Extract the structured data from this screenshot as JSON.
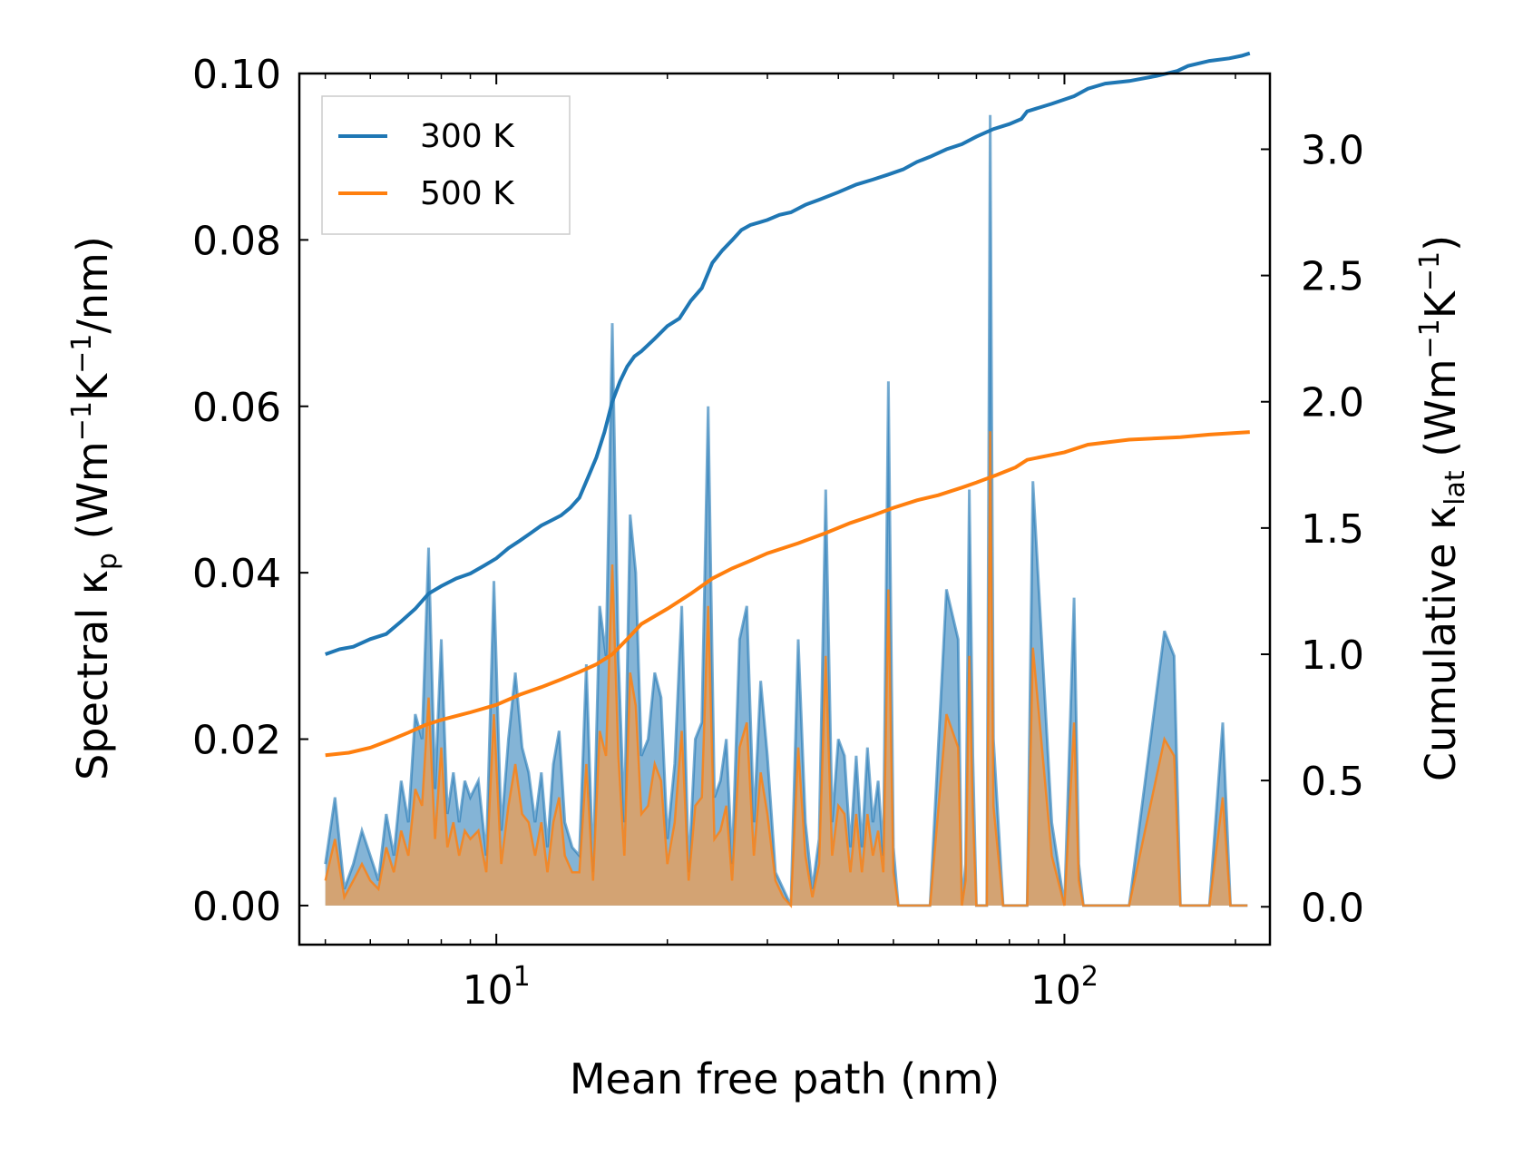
{
  "chart_data": {
    "type": "line",
    "title": "",
    "xlabel": "Mean free path (nm)",
    "ylabel_left": {
      "main": "Spectral κ",
      "sub": "p",
      "unit_pre": " (Wm",
      "sup1": "−1",
      "unit_mid": "K",
      "sup2": "−1",
      "unit_post": "/nm)"
    },
    "ylabel_right": {
      "main": "Cumulative κ",
      "sub": "lat",
      "unit_pre": " (Wm",
      "sup1": "−1",
      "unit_mid": "K",
      "sup2": "−1",
      "unit_post": ")"
    },
    "xscale": "log",
    "xlim": [
      4.5,
      230
    ],
    "ylim_left": [
      -0.0047,
      0.1
    ],
    "ylim_right": [
      -0.15,
      3.3
    ],
    "x_ticks": [
      {
        "value": 10,
        "base": "10",
        "exp": "1"
      },
      {
        "value": 100,
        "base": "10",
        "exp": "2"
      }
    ],
    "y_left_ticks": [
      "0.00",
      "0.02",
      "0.04",
      "0.06",
      "0.08",
      "0.10"
    ],
    "y_right_ticks": [
      "0.0",
      "0.5",
      "1.0",
      "1.5",
      "2.0",
      "2.5",
      "3.0"
    ],
    "legend": {
      "position": "top-left",
      "entries": [
        "300 K",
        "500 K"
      ]
    },
    "colors": {
      "s300": "#1f77b4",
      "s500": "#ff7f0e",
      "fill300": "#1f77b4",
      "fill500": "#d7a26e"
    },
    "spectral": {
      "x": [
        5.0,
        5.2,
        5.4,
        5.6,
        5.8,
        6.0,
        6.2,
        6.4,
        6.6,
        6.8,
        7.0,
        7.2,
        7.4,
        7.6,
        7.8,
        8.0,
        8.2,
        8.4,
        8.6,
        8.8,
        9.0,
        9.3,
        9.6,
        9.9,
        10.2,
        10.5,
        10.8,
        11.1,
        11.4,
        11.7,
        12.0,
        12.3,
        12.6,
        12.9,
        13.2,
        13.6,
        14.0,
        14.4,
        14.8,
        15.2,
        15.6,
        16.0,
        16.4,
        16.8,
        17.2,
        17.6,
        18.0,
        18.5,
        19.0,
        19.5,
        20.0,
        20.6,
        21.2,
        21.8,
        22.4,
        23.0,
        23.6,
        24.2,
        24.8,
        25.4,
        26.0,
        26.8,
        27.6,
        28.4,
        29.2,
        30.0,
        31.0,
        32.0,
        33.0,
        34.0,
        35.0,
        36.0,
        37.0,
        38.0,
        39.0,
        40.0,
        41.0,
        42.0,
        43.0,
        44.0,
        45.0,
        46.0,
        47.0,
        48.0,
        49.0,
        50.0,
        51.0,
        52.0,
        53.0,
        54.0,
        55.0,
        56.0,
        57.0,
        58.0,
        62.0,
        65.0,
        66.0,
        67.0,
        68.0,
        69.0,
        70.0,
        71.0,
        72.0,
        73.0,
        74.0,
        75.0,
        78.0,
        82.0,
        84.0,
        86.0,
        88.0,
        95.0,
        100.0,
        104.0,
        106.0,
        108.0,
        110.0,
        112.0,
        114.0,
        116.0,
        130.0,
        150.0,
        156.0,
        160.0,
        164.0,
        168.0,
        180.0,
        190.0,
        196.0,
        200.0,
        206.0,
        210.0
      ],
      "v300": [
        0.005,
        0.013,
        0.002,
        0.005,
        0.009,
        0.006,
        0.003,
        0.011,
        0.006,
        0.015,
        0.01,
        0.023,
        0.02,
        0.043,
        0.014,
        0.032,
        0.011,
        0.016,
        0.01,
        0.015,
        0.013,
        0.015,
        0.006,
        0.039,
        0.009,
        0.02,
        0.028,
        0.019,
        0.016,
        0.01,
        0.016,
        0.007,
        0.017,
        0.021,
        0.01,
        0.007,
        0.006,
        0.029,
        0.004,
        0.036,
        0.03,
        0.07,
        0.03,
        0.01,
        0.047,
        0.04,
        0.018,
        0.02,
        0.028,
        0.025,
        0.008,
        0.017,
        0.036,
        0.004,
        0.02,
        0.022,
        0.06,
        0.013,
        0.015,
        0.02,
        0.005,
        0.032,
        0.036,
        0.01,
        0.027,
        0.018,
        0.004,
        0.002,
        0.0,
        0.032,
        0.01,
        0.002,
        0.008,
        0.05,
        0.01,
        0.02,
        0.018,
        0.007,
        0.018,
        0.007,
        0.019,
        0.01,
        0.015,
        0.006,
        0.063,
        0.007,
        0.0,
        0.0,
        0.0,
        0.0,
        0.0,
        0.0,
        0.0,
        0.0,
        0.038,
        0.032,
        0.0,
        0.005,
        0.05,
        0.018,
        0.0,
        0.0,
        0.0,
        0.0,
        0.095,
        0.02,
        0.0,
        0.0,
        0.0,
        0.0,
        0.051,
        0.01,
        0.0,
        0.037,
        0.005,
        0.0,
        0.0,
        0.0,
        0.0,
        0.0,
        0.0,
        0.033,
        0.03,
        0.0,
        0.0,
        0.0,
        0.0,
        0.022,
        0.0,
        0.0,
        0.0,
        0.0
      ],
      "v500": [
        0.003,
        0.008,
        0.001,
        0.003,
        0.005,
        0.003,
        0.002,
        0.007,
        0.004,
        0.009,
        0.006,
        0.014,
        0.012,
        0.025,
        0.008,
        0.019,
        0.007,
        0.01,
        0.006,
        0.009,
        0.008,
        0.009,
        0.004,
        0.023,
        0.005,
        0.012,
        0.017,
        0.011,
        0.01,
        0.006,
        0.01,
        0.004,
        0.01,
        0.013,
        0.006,
        0.004,
        0.004,
        0.017,
        0.003,
        0.021,
        0.018,
        0.041,
        0.018,
        0.006,
        0.028,
        0.024,
        0.011,
        0.012,
        0.017,
        0.015,
        0.005,
        0.01,
        0.021,
        0.003,
        0.012,
        0.013,
        0.036,
        0.008,
        0.009,
        0.012,
        0.003,
        0.019,
        0.022,
        0.006,
        0.016,
        0.011,
        0.003,
        0.001,
        0.0,
        0.019,
        0.006,
        0.001,
        0.005,
        0.03,
        0.006,
        0.012,
        0.011,
        0.004,
        0.011,
        0.004,
        0.011,
        0.006,
        0.009,
        0.004,
        0.038,
        0.004,
        0.0,
        0.0,
        0.0,
        0.0,
        0.0,
        0.0,
        0.0,
        0.0,
        0.023,
        0.019,
        0.0,
        0.003,
        0.03,
        0.011,
        0.0,
        0.0,
        0.0,
        0.0,
        0.057,
        0.012,
        0.0,
        0.0,
        0.0,
        0.0,
        0.031,
        0.006,
        0.0,
        0.022,
        0.003,
        0.0,
        0.0,
        0.0,
        0.0,
        0.0,
        0.0,
        0.02,
        0.018,
        0.0,
        0.0,
        0.0,
        0.0,
        0.013,
        0.0,
        0.0,
        0.0,
        0.0
      ]
    },
    "cumulative": {
      "x300": [
        5.0,
        5.3,
        5.6,
        6.0,
        6.4,
        6.8,
        7.2,
        7.6,
        8.0,
        8.5,
        9.0,
        9.5,
        10.0,
        10.5,
        11.0,
        11.5,
        12.0,
        12.5,
        13.0,
        13.5,
        14.0,
        14.5,
        15.0,
        15.5,
        16.0,
        16.5,
        17.0,
        17.5,
        18.0,
        19.0,
        20.0,
        21.0,
        22.0,
        23.0,
        24.0,
        25.0,
        26.0,
        27.0,
        28.0,
        29.0,
        30.0,
        31.5,
        33.0,
        35.0,
        37.0,
        40.0,
        43.0,
        46.0,
        49.0,
        52.0,
        55.0,
        58.0,
        62.0,
        66.0,
        70.0,
        75.0,
        80.0,
        84.0,
        86.0,
        95.0,
        104.0,
        110.0,
        118.0,
        130.0,
        145.0,
        158.0,
        165.0,
        180.0,
        195.0,
        205.0,
        212.0
      ],
      "c300": [
        1.0,
        1.02,
        1.03,
        1.06,
        1.08,
        1.13,
        1.18,
        1.24,
        1.27,
        1.3,
        1.32,
        1.35,
        1.38,
        1.42,
        1.45,
        1.48,
        1.51,
        1.53,
        1.55,
        1.58,
        1.62,
        1.7,
        1.78,
        1.88,
        2.0,
        2.08,
        2.14,
        2.18,
        2.2,
        2.25,
        2.3,
        2.33,
        2.4,
        2.45,
        2.55,
        2.6,
        2.64,
        2.68,
        2.7,
        2.71,
        2.72,
        2.74,
        2.75,
        2.78,
        2.8,
        2.83,
        2.86,
        2.88,
        2.9,
        2.92,
        2.95,
        2.97,
        3.0,
        3.02,
        3.05,
        3.08,
        3.1,
        3.12,
        3.15,
        3.18,
        3.21,
        3.24,
        3.26,
        3.27,
        3.29,
        3.31,
        3.33,
        3.35,
        3.36,
        3.37,
        3.38
      ],
      "x500": [
        5.0,
        5.5,
        6.0,
        6.5,
        7.0,
        7.5,
        8.0,
        9.0,
        10.0,
        11.0,
        12.0,
        13.0,
        14.0,
        15.0,
        16.0,
        17.0,
        18.0,
        20.0,
        22.0,
        24.0,
        26.0,
        28.0,
        30.0,
        34.0,
        38.0,
        42.0,
        46.0,
        50.0,
        55.0,
        60.0,
        66.0,
        70.0,
        76.0,
        82.0,
        86.0,
        100.0,
        110.0,
        130.0,
        160.0,
        180.0,
        212.0
      ],
      "c500": [
        0.6,
        0.61,
        0.63,
        0.66,
        0.69,
        0.72,
        0.74,
        0.77,
        0.8,
        0.84,
        0.87,
        0.9,
        0.93,
        0.96,
        1.0,
        1.06,
        1.12,
        1.18,
        1.24,
        1.3,
        1.34,
        1.37,
        1.4,
        1.44,
        1.48,
        1.52,
        1.55,
        1.58,
        1.61,
        1.63,
        1.66,
        1.68,
        1.71,
        1.74,
        1.77,
        1.8,
        1.83,
        1.85,
        1.86,
        1.87,
        1.88
      ]
    }
  }
}
